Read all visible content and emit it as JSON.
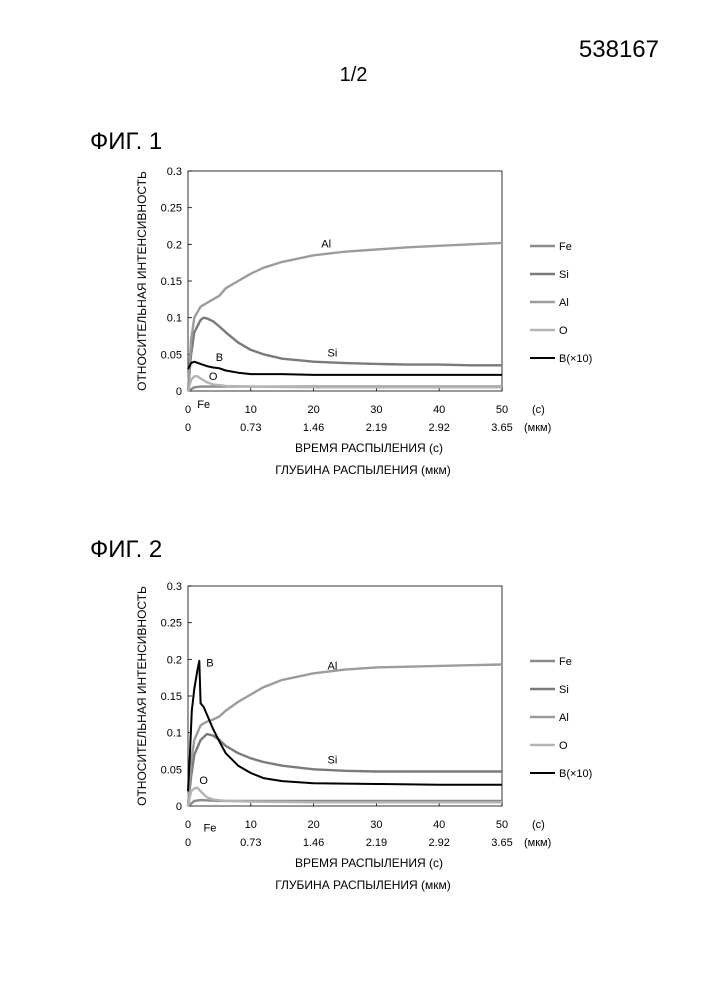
{
  "page_number": "538167",
  "sheet_number": "1/2",
  "figures": [
    {
      "label": "ФИГ. 1"
    },
    {
      "label": "ФИГ. 2"
    }
  ],
  "chart_data": [
    {
      "type": "line",
      "title": "",
      "ylabel": "ОТНОСИТЕЛЬНАЯ ИНТЕНСИВНОСТЬ",
      "xlabel": "ВРЕМЯ РАСПЫЛЕНИЯ (с)",
      "xlabel2": "ГЛУБИНА РАСПЫЛЕНИЯ (мкм)",
      "xlim": [
        0,
        50
      ],
      "ylim": [
        0,
        0.3
      ],
      "x_ticks": [
        "0",
        "10",
        "20",
        "30",
        "40",
        "50"
      ],
      "x_unit": "(с)",
      "x2_ticks": [
        "0",
        "0.73",
        "1.46",
        "2.19",
        "2.92",
        "3.65"
      ],
      "x2_unit": "(мкм)",
      "y_ticks": [
        "0",
        "0.05",
        "0.1",
        "0.15",
        "0.2",
        "0.25",
        "0.3"
      ],
      "grid": false,
      "legend_position": "right",
      "series": [
        {
          "name": "Fe",
          "color": "#8a8a8a",
          "x": [
            0,
            1,
            2,
            5,
            10,
            20,
            30,
            40,
            50
          ],
          "y": [
            0,
            0.005,
            0.006,
            0.006,
            0.006,
            0.006,
            0.006,
            0.006,
            0.006
          ]
        },
        {
          "name": "Si",
          "color": "#7a7a7a",
          "x": [
            0,
            0.5,
            1,
            2,
            2.5,
            3,
            4,
            5,
            6,
            8,
            10,
            12,
            15,
            20,
            25,
            30,
            35,
            40,
            45,
            50
          ],
          "y": [
            0,
            0.05,
            0.08,
            0.097,
            0.1,
            0.099,
            0.095,
            0.088,
            0.08,
            0.066,
            0.056,
            0.05,
            0.044,
            0.04,
            0.038,
            0.037,
            0.036,
            0.036,
            0.035,
            0.035
          ]
        },
        {
          "name": "Al",
          "color": "#9c9c9c",
          "x": [
            0,
            0.5,
            1,
            2,
            3,
            4,
            5,
            6,
            8,
            10,
            12,
            15,
            20,
            25,
            30,
            35,
            40,
            45,
            50
          ],
          "y": [
            0,
            0.07,
            0.1,
            0.115,
            0.12,
            0.125,
            0.13,
            0.14,
            0.15,
            0.16,
            0.168,
            0.176,
            0.185,
            0.19,
            0.193,
            0.196,
            0.198,
            0.2,
            0.202
          ]
        },
        {
          "name": "O",
          "color": "#b4b4b4",
          "x": [
            0,
            0.5,
            1,
            1.5,
            2,
            3,
            4,
            6,
            10,
            20,
            30,
            40,
            50
          ],
          "y": [
            0,
            0.015,
            0.02,
            0.02,
            0.017,
            0.012,
            0.009,
            0.007,
            0.006,
            0.005,
            0.005,
            0.005,
            0.005
          ]
        },
        {
          "name": "B(×10)",
          "color": "#000000",
          "x": [
            0,
            0.5,
            1,
            2,
            3,
            4,
            5,
            6,
            8,
            10,
            15,
            20,
            30,
            40,
            50
          ],
          "y": [
            0.03,
            0.038,
            0.04,
            0.037,
            0.034,
            0.032,
            0.031,
            0.028,
            0.025,
            0.023,
            0.023,
            0.022,
            0.022,
            0.022,
            0.022
          ]
        }
      ],
      "annotations": [
        {
          "text": "Al",
          "x": 22,
          "y": 0.196
        },
        {
          "text": "Si",
          "x": 23,
          "y": 0.047
        },
        {
          "text": "B",
          "x": 5,
          "y": 0.041
        },
        {
          "text": "O",
          "x": 4,
          "y": 0.015
        },
        {
          "text": "Fe",
          "x": 2.5,
          "y": -0.023
        }
      ]
    },
    {
      "type": "line",
      "title": "",
      "ylabel": "ОТНОСИТЕЛЬНАЯ ИНТЕНСИВНОСТЬ",
      "xlabel": "ВРЕМЯ РАСПЫЛЕНИЯ (с)",
      "xlabel2": "ГЛУБИНА РАСПЫЛЕНИЯ (мкм)",
      "xlim": [
        0,
        50
      ],
      "ylim": [
        0,
        0.3
      ],
      "x_ticks": [
        "0",
        "10",
        "20",
        "30",
        "40",
        "50"
      ],
      "x_unit": "(с)",
      "x2_ticks": [
        "0",
        "0.73",
        "1.46",
        "2.19",
        "2.92",
        "3.65"
      ],
      "x2_unit": "(мкм)",
      "y_ticks": [
        "0",
        "0.05",
        "0.1",
        "0.15",
        "0.2",
        "0.25",
        "0.3"
      ],
      "grid": false,
      "legend_position": "right",
      "series": [
        {
          "name": "Fe",
          "color": "#8a8a8a",
          "x": [
            0,
            1,
            2,
            5,
            10,
            20,
            30,
            40,
            50
          ],
          "y": [
            0,
            0.007,
            0.008,
            0.007,
            0.007,
            0.007,
            0.007,
            0.007,
            0.007
          ]
        },
        {
          "name": "Si",
          "color": "#7a7a7a",
          "x": [
            0,
            0.5,
            1,
            2,
            3,
            4,
            5,
            6,
            8,
            10,
            12,
            15,
            20,
            25,
            30,
            35,
            40,
            45,
            50
          ],
          "y": [
            0,
            0.04,
            0.07,
            0.09,
            0.098,
            0.096,
            0.09,
            0.082,
            0.072,
            0.065,
            0.06,
            0.055,
            0.05,
            0.048,
            0.047,
            0.047,
            0.047,
            0.047,
            0.047
          ]
        },
        {
          "name": "Al",
          "color": "#9c9c9c",
          "x": [
            0,
            0.5,
            1,
            2,
            3,
            4,
            5,
            6,
            8,
            10,
            12,
            15,
            20,
            25,
            30,
            35,
            40,
            45,
            50
          ],
          "y": [
            0,
            0.06,
            0.09,
            0.11,
            0.115,
            0.118,
            0.122,
            0.13,
            0.142,
            0.152,
            0.162,
            0.172,
            0.181,
            0.186,
            0.189,
            0.19,
            0.191,
            0.192,
            0.193
          ]
        },
        {
          "name": "O",
          "color": "#b4b4b4",
          "x": [
            0,
            0.5,
            1,
            1.5,
            2,
            3,
            4,
            6,
            10,
            20,
            30,
            40,
            50
          ],
          "y": [
            0,
            0.02,
            0.024,
            0.025,
            0.02,
            0.012,
            0.009,
            0.007,
            0.006,
            0.005,
            0.005,
            0.005,
            0.005
          ]
        },
        {
          "name": "B(×10)",
          "color": "#000000",
          "x": [
            0,
            0.3,
            0.6,
            1,
            1.5,
            1.8,
            2,
            2.5,
            3,
            4,
            5,
            6,
            8,
            10,
            12,
            15,
            20,
            30,
            40,
            50
          ],
          "y": [
            0.02,
            0.07,
            0.13,
            0.16,
            0.185,
            0.198,
            0.14,
            0.135,
            0.125,
            0.105,
            0.088,
            0.072,
            0.055,
            0.045,
            0.038,
            0.034,
            0.031,
            0.03,
            0.029,
            0.029
          ]
        }
      ],
      "annotations": [
        {
          "text": "Al",
          "x": 23,
          "y": 0.186
        },
        {
          "text": "Si",
          "x": 23,
          "y": 0.058
        },
        {
          "text": "B",
          "x": 3.5,
          "y": 0.19
        },
        {
          "text": "O",
          "x": 2.5,
          "y": 0.03
        },
        {
          "text": "Fe",
          "x": 3.5,
          "y": -0.035
        }
      ]
    }
  ]
}
